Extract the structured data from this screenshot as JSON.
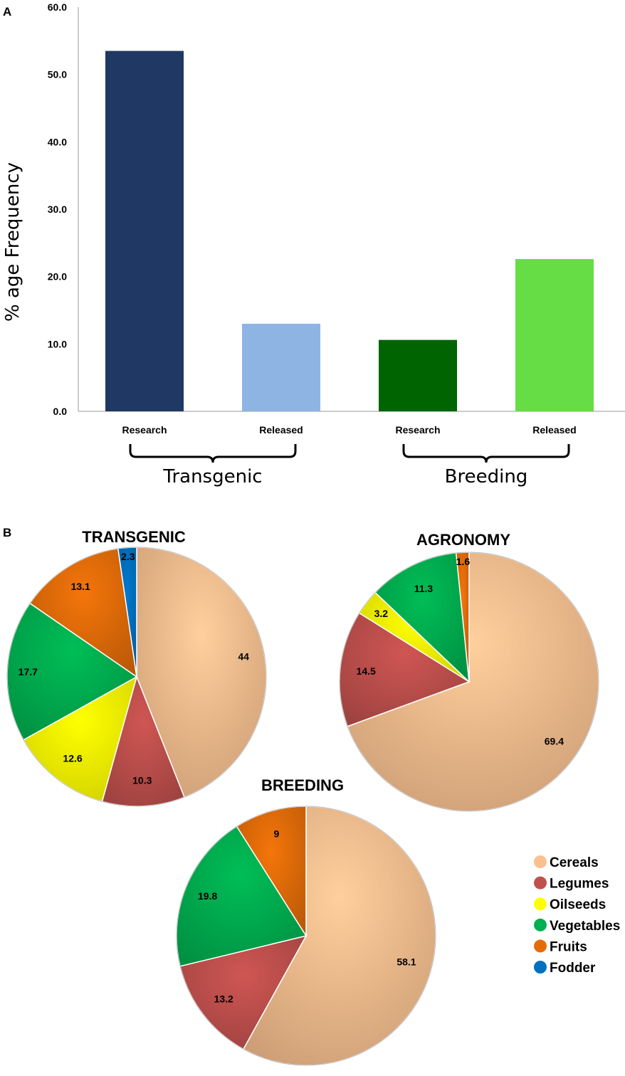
{
  "panel_a_label": "A",
  "panel_b_label": "B",
  "colors": {
    "Cereals": "#fac090",
    "Legumes": "#c0504d",
    "Oilseeds": "#ffff00",
    "Vegetables": "#00b050",
    "Fruits": "#e36c09",
    "Fodder": "#0070c0"
  },
  "chart_data": [
    {
      "type": "bar",
      "ylabel": "% age  Frequency",
      "ylim": [
        0,
        60
      ],
      "yticks": [
        "0.0",
        "10.0",
        "20.0",
        "30.0",
        "40.0",
        "50.0",
        "60.0"
      ],
      "categories": [
        "Research",
        "Released",
        "Research",
        "Released"
      ],
      "values": [
        53.5,
        13.0,
        10.6,
        22.6
      ],
      "bar_colors": [
        "#1f3864",
        "#8eb4e3",
        "#006400",
        "#66dd44"
      ],
      "groups": [
        {
          "label": "Transgenic",
          "members": [
            0,
            1
          ]
        },
        {
          "label": "Breeding",
          "members": [
            2,
            3
          ]
        }
      ],
      "grid": false
    },
    {
      "type": "pie",
      "title": "TRANSGENIC",
      "slices": [
        {
          "name": "Cereals",
          "value": 44,
          "label": "44"
        },
        {
          "name": "Legumes",
          "value": 10.3,
          "label": "10.3"
        },
        {
          "name": "Oilseeds",
          "value": 12.6,
          "label": "12.6"
        },
        {
          "name": "Vegetables",
          "value": 17.7,
          "label": "17.7"
        },
        {
          "name": "Fruits",
          "value": 13.1,
          "label": "13.1"
        },
        {
          "name": "Fodder",
          "value": 2.3,
          "label": "2.3"
        }
      ]
    },
    {
      "type": "pie",
      "title": "AGRONOMY",
      "slices": [
        {
          "name": "Cereals",
          "value": 69.4,
          "label": "69.4"
        },
        {
          "name": "Legumes",
          "value": 14.5,
          "label": "14.5"
        },
        {
          "name": "Oilseeds",
          "value": 3.2,
          "label": "3.2"
        },
        {
          "name": "Vegetables",
          "value": 11.3,
          "label": "11.3"
        },
        {
          "name": "Fruits",
          "value": 1.6,
          "label": "1.6"
        }
      ]
    },
    {
      "type": "pie",
      "title": "BREEDING",
      "slices": [
        {
          "name": "Cereals",
          "value": 58.1,
          "label": "58.1"
        },
        {
          "name": "Legumes",
          "value": 13.2,
          "label": "13.2"
        },
        {
          "name": "Vegetables",
          "value": 19.8,
          "label": "19.8"
        },
        {
          "name": "Fruits",
          "value": 9,
          "label": "9"
        }
      ]
    }
  ],
  "legend": [
    {
      "name": "Cereals",
      "label": "Cereals"
    },
    {
      "name": "Legumes",
      "label": "Legumes"
    },
    {
      "name": "Oilseeds",
      "label": "Oilseeds"
    },
    {
      "name": "Vegetables",
      "label": "Vegetables"
    },
    {
      "name": "Fruits",
      "label": "Fruits"
    },
    {
      "name": "Fodder",
      "label": "Fodder"
    }
  ]
}
